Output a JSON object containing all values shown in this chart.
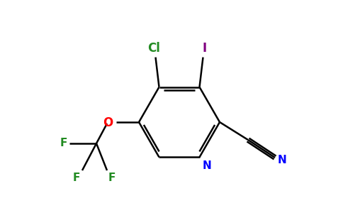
{
  "bg_color": "#ffffff",
  "atom_colors": {
    "C": "#000000",
    "N": "#0000ff",
    "O": "#ff0000",
    "F": "#228B22",
    "Cl": "#228B22",
    "I": "#800080"
  },
  "figsize": [
    4.84,
    3.0
  ],
  "dpi": 100
}
